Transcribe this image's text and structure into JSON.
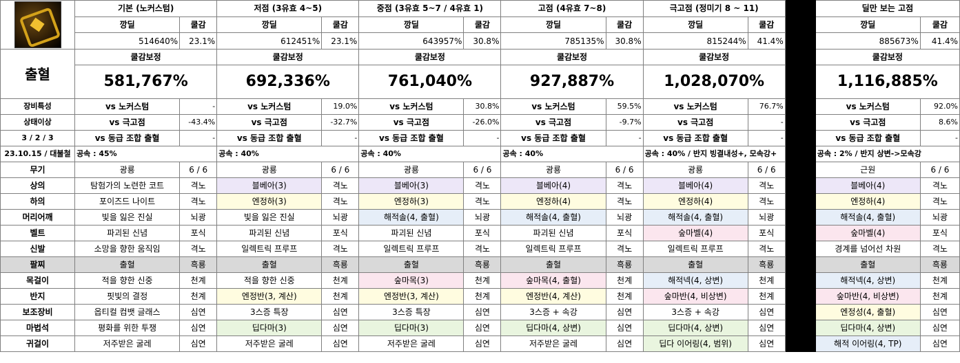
{
  "icon_name": "noxus-weapon-icon",
  "row_label_main": "출혈",
  "label_equip_trait": "장비특성",
  "label_status": "상태이상",
  "label_ratio": "3 / 2 / 3",
  "label_date": "23.10.15 / 대불철",
  "label_weapon": "무기",
  "col_kkangdil": "깡딜",
  "col_cooldown": "쿨감",
  "col_cdr_adjust": "쿨감보정",
  "vs_noxus": "vs 노커스텀",
  "vs_top": "vs 극고점",
  "vs_same": "vs 동급 조합 출혈",
  "slots": [
    {
      "key": "top",
      "label": "상의"
    },
    {
      "key": "bottom",
      "label": "하의"
    },
    {
      "key": "shoulder",
      "label": "머리어깨"
    },
    {
      "key": "belt",
      "label": "벨트"
    },
    {
      "key": "shoes",
      "label": "신발"
    },
    {
      "key": "bracelet",
      "label": "팔찌"
    },
    {
      "key": "necklace",
      "label": "목걸이"
    },
    {
      "key": "ring",
      "label": "반지"
    },
    {
      "key": "sub",
      "label": "보조장비"
    },
    {
      "key": "magic",
      "label": "마법석"
    },
    {
      "key": "earring",
      "label": "귀걸이"
    }
  ],
  "columns": [
    {
      "title": "기본 (노커스텀)",
      "kkangdil": "514640%",
      "cooldown": "23.1%",
      "cdr": "581,767%",
      "vs_noxus": "-",
      "vs_top": "-43.4%",
      "vs_same": "-",
      "speed": "공속 : 45%",
      "weapon": "광룡",
      "weapon_ratio": "6 / 6",
      "items": [
        {
          "name": "탐험가의 노련한 코트",
          "opt": "격노",
          "color": ""
        },
        {
          "name": "포이즈드 나이트",
          "opt": "격노",
          "color": ""
        },
        {
          "name": "빛을 잃은 진실",
          "opt": "뇌광",
          "color": ""
        },
        {
          "name": "파괴된 신념",
          "opt": "포식",
          "color": ""
        },
        {
          "name": "소망을 향한 움직임",
          "opt": "격노",
          "color": ""
        },
        {
          "name": "출혈",
          "opt": "흑룡",
          "color": "gray"
        },
        {
          "name": "적을 향한 신중",
          "opt": "천계",
          "color": ""
        },
        {
          "name": "핏빛의 결정",
          "opt": "천계",
          "color": ""
        },
        {
          "name": "옵티컬 컴뱃 글래스",
          "opt": "심연",
          "color": ""
        },
        {
          "name": "평화를 위한 투쟁",
          "opt": "심연",
          "color": ""
        },
        {
          "name": "저주받은 굴레",
          "opt": "심연",
          "color": ""
        }
      ]
    },
    {
      "title": "저점 (3유효 4~5)",
      "kkangdil": "612451%",
      "cooldown": "23.1%",
      "cdr": "692,336%",
      "vs_noxus": "19.0%",
      "vs_top": "-32.7%",
      "vs_same": "-",
      "speed": "공속 : 40%",
      "weapon": "광룡",
      "weapon_ratio": "6 / 6",
      "items": [
        {
          "name": "블베아(3)",
          "opt": "격노",
          "color": "purple"
        },
        {
          "name": "엔정하(3)",
          "opt": "격노",
          "color": "yellow"
        },
        {
          "name": "빛을 잃은 진실",
          "opt": "뇌광",
          "color": ""
        },
        {
          "name": "파괴된 신념",
          "opt": "포식",
          "color": ""
        },
        {
          "name": "일렉트릭 프루프",
          "opt": "격노",
          "color": ""
        },
        {
          "name": "출혈",
          "opt": "흑룡",
          "color": "gray"
        },
        {
          "name": "적을 향한 신중",
          "opt": "천계",
          "color": ""
        },
        {
          "name": "엔정반(3, 계산)",
          "opt": "천계",
          "color": "yellow"
        },
        {
          "name": "3스증 특장",
          "opt": "심연",
          "color": ""
        },
        {
          "name": "딥다마(3)",
          "opt": "심연",
          "color": "green"
        },
        {
          "name": "저주받은 굴레",
          "opt": "심연",
          "color": ""
        }
      ]
    },
    {
      "title": "중점 (3유효 5~7 / 4유효 1)",
      "kkangdil": "643957%",
      "cooldown": "30.8%",
      "cdr": "761,040%",
      "vs_noxus": "30.8%",
      "vs_top": "-26.0%",
      "vs_same": "-",
      "speed": "공속 : 40%",
      "weapon": "광룡",
      "weapon_ratio": "6 / 6",
      "items": [
        {
          "name": "블베아(3)",
          "opt": "격노",
          "color": "purple"
        },
        {
          "name": "엔정하(3)",
          "opt": "격노",
          "color": "yellow"
        },
        {
          "name": "해적솔(4, 출혈)",
          "opt": "뇌광",
          "color": "blue"
        },
        {
          "name": "파괴된 신념",
          "opt": "포식",
          "color": ""
        },
        {
          "name": "일렉트릭 프루프",
          "opt": "격노",
          "color": ""
        },
        {
          "name": "출혈",
          "opt": "흑룡",
          "color": "gray"
        },
        {
          "name": "숲마목(3)",
          "opt": "천계",
          "color": "pink"
        },
        {
          "name": "엔정반(3, 계산)",
          "opt": "천계",
          "color": "yellow"
        },
        {
          "name": "3스증 특장",
          "opt": "심연",
          "color": ""
        },
        {
          "name": "딥다마(3)",
          "opt": "심연",
          "color": "green"
        },
        {
          "name": "저주받은 굴레",
          "opt": "심연",
          "color": ""
        }
      ]
    },
    {
      "title": "고점 (4유효 7~8)",
      "kkangdil": "785135%",
      "cooldown": "30.8%",
      "cdr": "927,887%",
      "vs_noxus": "59.5%",
      "vs_top": "-9.7%",
      "vs_same": "-",
      "speed": "공속 : 40%",
      "weapon": "광룡",
      "weapon_ratio": "6 / 6",
      "items": [
        {
          "name": "블베아(4)",
          "opt": "격노",
          "color": "purple"
        },
        {
          "name": "엔정하(4)",
          "opt": "격노",
          "color": "yellow"
        },
        {
          "name": "해적솔(4, 출혈)",
          "opt": "뇌광",
          "color": "blue"
        },
        {
          "name": "파괴된 신념",
          "opt": "포식",
          "color": ""
        },
        {
          "name": "일렉트릭 프루프",
          "opt": "격노",
          "color": ""
        },
        {
          "name": "출혈",
          "opt": "흑룡",
          "color": "gray"
        },
        {
          "name": "숲마목(4, 출혈)",
          "opt": "천계",
          "color": "pink"
        },
        {
          "name": "엔정반(4, 계산)",
          "opt": "천계",
          "color": "yellow"
        },
        {
          "name": "3스증 + 속강",
          "opt": "심연",
          "color": ""
        },
        {
          "name": "딥다마(4, 상변)",
          "opt": "심연",
          "color": "green"
        },
        {
          "name": "저주받은 굴레",
          "opt": "심연",
          "color": ""
        }
      ]
    },
    {
      "title": "극고점 (정미기 8 ~ 11)",
      "kkangdil": "815244%",
      "cooldown": "41.4%",
      "cdr": "1,028,070%",
      "vs_noxus": "76.7%",
      "vs_top": "-",
      "vs_same": "-",
      "speed": "공속 : 40% / 반지 빙결내성+, 모속강+",
      "weapon": "광룡",
      "weapon_ratio": "6 / 6",
      "items": [
        {
          "name": "블베아(4)",
          "opt": "격노",
          "color": "purple"
        },
        {
          "name": "엔정하(4)",
          "opt": "격노",
          "color": "yellow"
        },
        {
          "name": "해적솔(4, 출혈)",
          "opt": "뇌광",
          "color": "blue"
        },
        {
          "name": "숲마벨(4)",
          "opt": "포식",
          "color": "pink"
        },
        {
          "name": "일렉트릭 프루프",
          "opt": "격노",
          "color": ""
        },
        {
          "name": "출혈",
          "opt": "흑룡",
          "color": "gray"
        },
        {
          "name": "해적넥(4, 상변)",
          "opt": "천계",
          "color": "blue"
        },
        {
          "name": "숲마반(4, 비상변)",
          "opt": "천계",
          "color": "pink"
        },
        {
          "name": "3스증 + 속강",
          "opt": "심연",
          "color": ""
        },
        {
          "name": "딥다마(4, 상변)",
          "opt": "심연",
          "color": "green"
        },
        {
          "name": "딥다 이어링(4, 범위)",
          "opt": "심연",
          "color": "green"
        }
      ]
    },
    {
      "title": "딜만 보는 고점",
      "kkangdil": "885673%",
      "cooldown": "41.4%",
      "cdr": "1,116,885%",
      "vs_noxus": "92.0%",
      "vs_top": "8.6%",
      "vs_same": "-",
      "speed": "공속 : 2% / 반지 상변->모속강",
      "weapon": "근원",
      "weapon_ratio": "6 / 6",
      "items": [
        {
          "name": "블베아(4)",
          "opt": "격노",
          "color": "purple"
        },
        {
          "name": "엔정하(4)",
          "opt": "격노",
          "color": "yellow"
        },
        {
          "name": "해적솔(4, 출혈)",
          "opt": "뇌광",
          "color": "blue"
        },
        {
          "name": "숲마벨(4)",
          "opt": "포식",
          "color": "pink"
        },
        {
          "name": "경계를 넘어선 차원",
          "opt": "격노",
          "color": ""
        },
        {
          "name": "출혈",
          "opt": "흑룡",
          "color": "gray"
        },
        {
          "name": "해적넥(4, 상변)",
          "opt": "천계",
          "color": "blue"
        },
        {
          "name": "숲마반(4, 비상변)",
          "opt": "천계",
          "color": "pink"
        },
        {
          "name": "엔정성(4, 출혈)",
          "opt": "심연",
          "color": "yellow"
        },
        {
          "name": "딥다마(4, 상변)",
          "opt": "심연",
          "color": "green"
        },
        {
          "name": "해적 이어링(4, TP)",
          "opt": "심연",
          "color": "blue"
        }
      ]
    }
  ]
}
